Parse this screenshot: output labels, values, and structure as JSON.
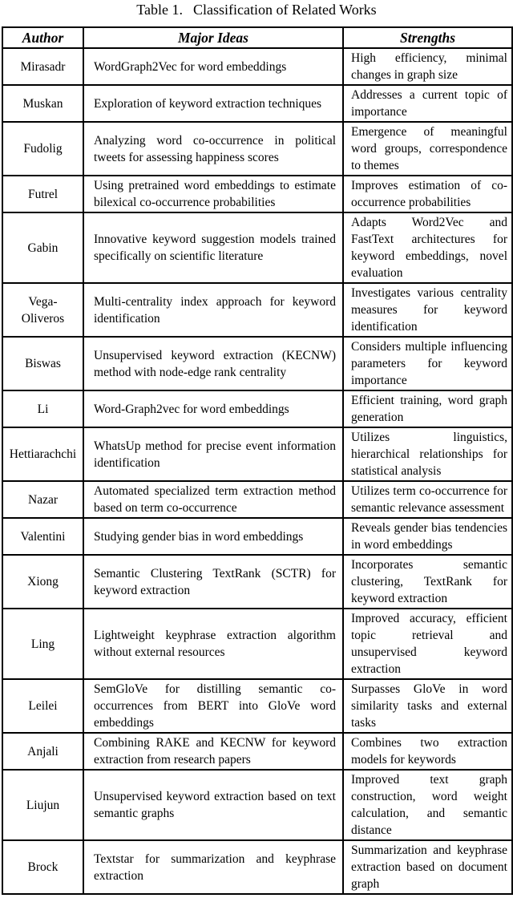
{
  "page": {
    "caption_label": "Table 1.",
    "caption_text": "Classification of Related Works"
  },
  "table": {
    "headers": [
      "Author",
      "Major Ideas",
      "Strengths"
    ],
    "rows": [
      {
        "author": "Mirasadr",
        "major_ideas": "WordGraph2Vec for word embeddings",
        "strengths": "High efficiency, minimal changes in graph size"
      },
      {
        "author": "Muskan",
        "major_ideas": "Exploration of keyword extraction techniques",
        "strengths": "Addresses a current topic of importance"
      },
      {
        "author": "Fudolig",
        "major_ideas": "Analyzing word co-occurrence in political tweets for assessing happiness scores",
        "strengths": "Emergence of meaningful word groups, correspondence to themes"
      },
      {
        "author": "Futrel",
        "major_ideas": "Using pretrained word embeddings to estimate bilexical co-occurrence probabilities",
        "strengths": "Improves estimation of co-occurrence probabilities"
      },
      {
        "author": "Gabin",
        "major_ideas": "Innovative keyword suggestion models trained specifically on scientific literature",
        "strengths": "Adapts Word2Vec and FastText architectures for keyword embeddings, novel evaluation"
      },
      {
        "author": "Vega-Oliveros",
        "major_ideas": "Multi-centrality index approach for keyword identification",
        "strengths": "Investigates various centrality measures for keyword identification"
      },
      {
        "author": "Biswas",
        "major_ideas": "Unsupervised keyword extraction (KECNW) method with node-edge rank centrality",
        "strengths": "Considers multiple influencing parameters for keyword importance"
      },
      {
        "author": "Li",
        "major_ideas": "Word-Graph2vec for word embeddings",
        "strengths": "Efficient training, word graph generation"
      },
      {
        "author": "Hettiarachchi",
        "major_ideas": "WhatsUp method for precise event information identification",
        "strengths": "Utilizes linguistics, hierarchical relationships for statistical analysis"
      },
      {
        "author": "Nazar",
        "major_ideas": "Automated specialized term extraction method based on term co-occurrence",
        "strengths": "Utilizes term co-occurrence for semantic relevance assessment"
      },
      {
        "author": "Valentini",
        "major_ideas": "Studying gender bias in word embeddings",
        "strengths": "Reveals gender bias tendencies in word embeddings"
      },
      {
        "author": "Xiong",
        "major_ideas": "Semantic Clustering TextRank (SCTR) for keyword extraction",
        "strengths": "Incorporates semantic clustering, TextRank for keyword extraction"
      },
      {
        "author": "Ling",
        "major_ideas": "Lightweight keyphrase extraction algorithm without external resources",
        "strengths": "Improved accuracy, efficient topic retrieval and unsupervised keyword extraction"
      },
      {
        "author": "Leilei",
        "major_ideas": "SemGloVe for distilling semantic co-occurrences from BERT into GloVe word embeddings",
        "strengths": "Surpasses GloVe in word similarity tasks and external tasks"
      },
      {
        "author": "Anjali",
        "major_ideas": "Combining RAKE and KECNW for keyword extraction from research papers",
        "strengths": "Combines two extraction models for keywords"
      },
      {
        "author": "Liujun",
        "major_ideas": "Unsupervised keyword extraction based on text semantic graphs",
        "strengths": "Improved text graph construction, word weight calculation, and semantic distance"
      },
      {
        "author": "Brock",
        "major_ideas": "Textstar for summarization and keyphrase extraction",
        "strengths": "Summarization and keyphrase extraction based on document graph"
      }
    ]
  }
}
